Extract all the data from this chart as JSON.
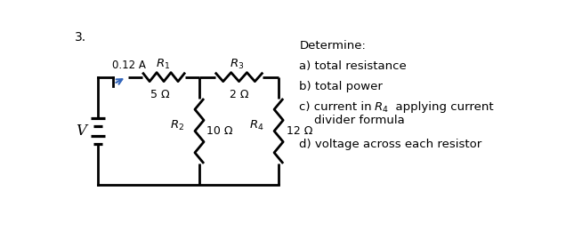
{
  "problem_number": "3.",
  "current_label": "0.12 A",
  "voltage_label": "V",
  "r1_label": "$R_1$",
  "r2_label": "$R_2$",
  "r3_label": "$R_3$",
  "r4_label": "$R_4$",
  "r1_value": "5 Ω",
  "r2_value": "10 Ω",
  "r3_value": "2 Ω",
  "r4_value": "12 Ω",
  "questions": [
    "Determine:",
    "a) total resistance",
    "b) total power",
    "c) current in $R_4$  applying current",
    "    divider formula",
    "d) voltage across each resistor"
  ],
  "bg_color": "#ffffff",
  "line_color": "#000000",
  "arrow_color": "#3366bb",
  "lw": 2.0
}
